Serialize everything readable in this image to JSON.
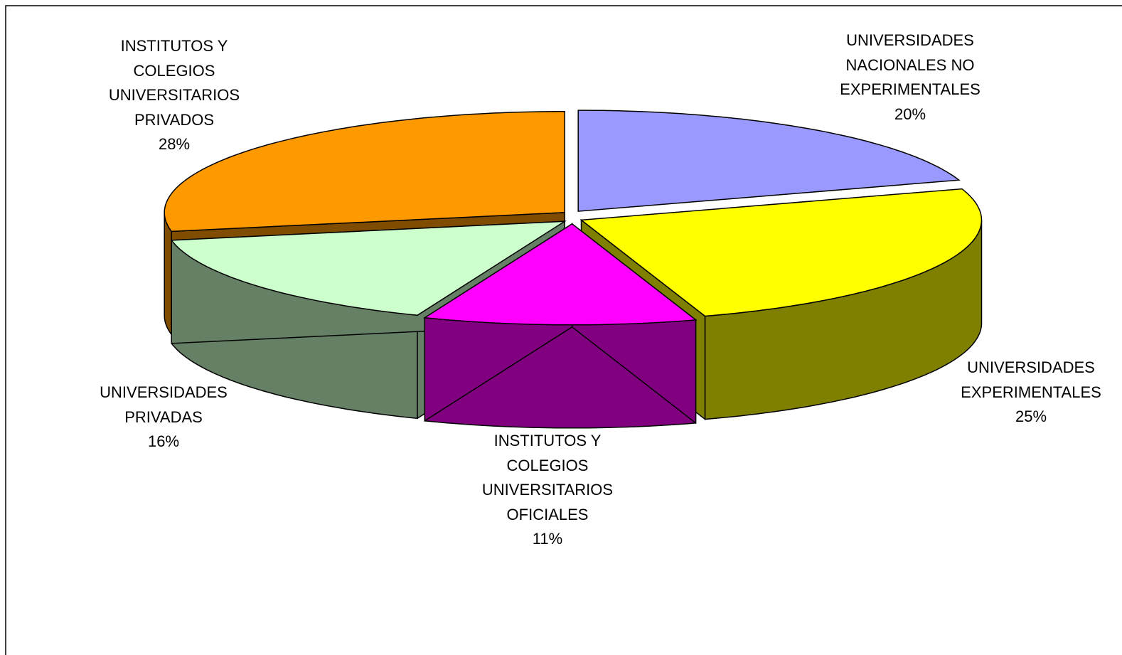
{
  "chart_data": {
    "type": "pie3d",
    "categories": [
      "UNIVERSIDADES\nNACIONALES NO\nEXPERIMENTALES",
      "UNIVERSIDADES\nEXPERIMENTALES",
      "INSTITUTOS Y\nCOLEGIOS\nUNIVERSITARIOS\nOFICIALES",
      "UNIVERSIDADES\nPRIVADAS",
      "INSTITUTOS Y\nCOLEGIOS\nUNIVERSITARIOS\nPRIVADOS"
    ],
    "values": [
      20,
      25,
      11,
      16,
      28
    ],
    "value_labels": [
      "20%",
      "25%",
      "11%",
      "16%",
      "28%"
    ],
    "colors": [
      "#9999ff",
      "#ffff00",
      "#ff00ff",
      "#ccffcc",
      "#ff9900"
    ]
  }
}
